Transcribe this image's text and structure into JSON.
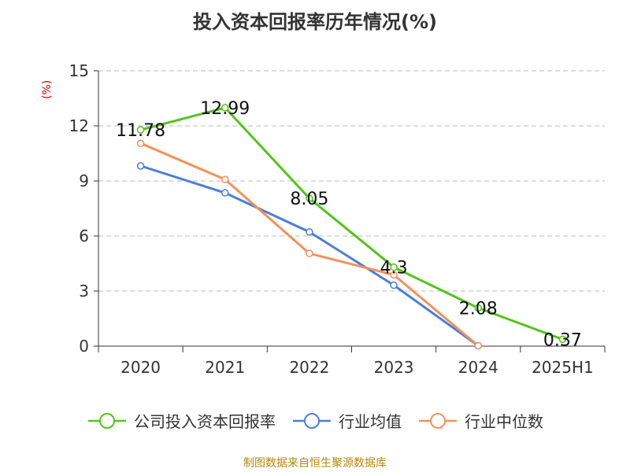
{
  "chart_data": {
    "type": "line",
    "title": "投入资本回报率历年情况(%)",
    "ylabel": "(%)",
    "xlabel": "",
    "categories": [
      "2020",
      "2021",
      "2022",
      "2023",
      "2024",
      "2025H1"
    ],
    "ylim": [
      0,
      15
    ],
    "yticks": [
      0,
      3,
      6,
      9,
      12,
      15
    ],
    "grid": true,
    "legend_position": "bottom",
    "series": [
      {
        "name": "公司投入资本回报率",
        "color": "#52c41a",
        "values": [
          11.78,
          12.99,
          8.05,
          4.3,
          2.08,
          0.37
        ],
        "labels": [
          "11.78",
          "12.99",
          "8.05",
          "4.3",
          "2.08",
          "0.37"
        ]
      },
      {
        "name": "行业均值",
        "color": "#4a7fd8",
        "values": [
          9.82,
          8.35,
          6.22,
          3.32,
          0.02,
          null
        ]
      },
      {
        "name": "行业中位数",
        "color": "#f5905a",
        "values": [
          11.05,
          9.08,
          5.05,
          3.88,
          0.02,
          null
        ]
      }
    ]
  },
  "footer": {
    "source": "制图数据来自恒生聚源数据库"
  }
}
